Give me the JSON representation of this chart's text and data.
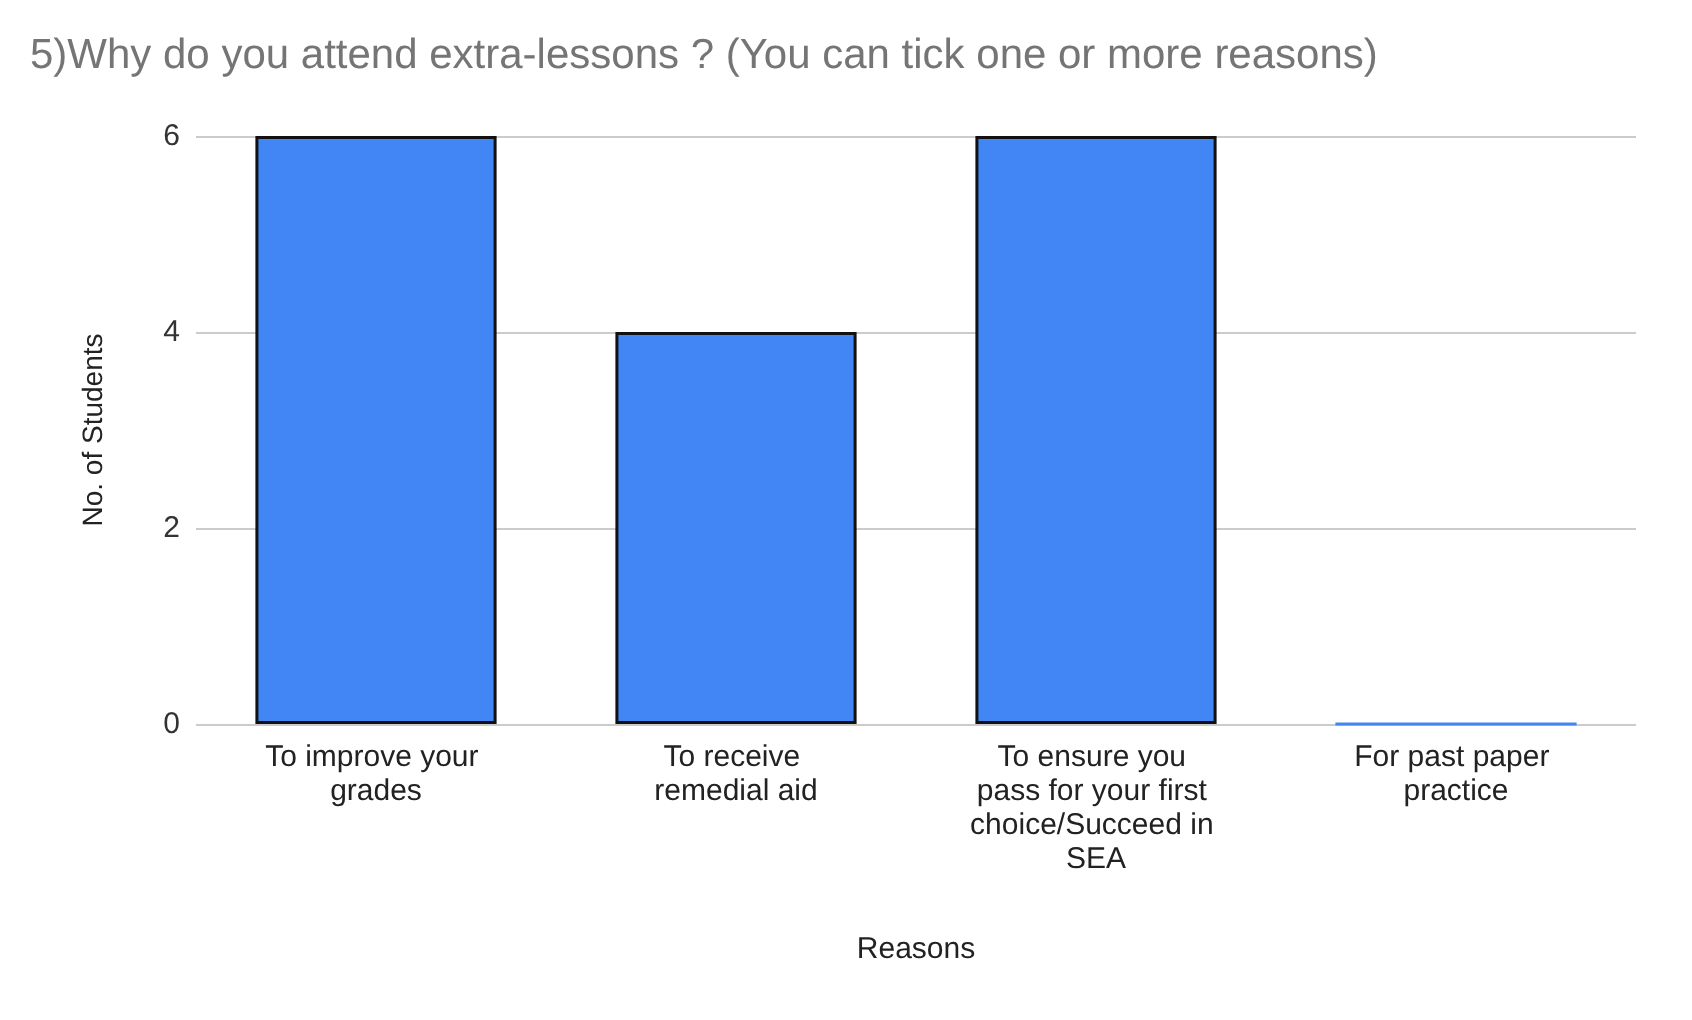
{
  "chart_data": {
    "type": "bar",
    "title": "5)Why do you attend extra-lessons ? (You can tick one or more reasons)",
    "xlabel": "Reasons",
    "ylabel": "No. of Students",
    "categories": [
      "To improve your grades",
      "To receive remedial aid",
      "To ensure you pass for your first choice/Succeed in SEA",
      "For past paper practice"
    ],
    "values": [
      6,
      4,
      6,
      0
    ],
    "color": "#4285f4",
    "ylim": [
      0,
      6
    ],
    "yticks": [
      0,
      2,
      4,
      6
    ],
    "grid": "y"
  }
}
